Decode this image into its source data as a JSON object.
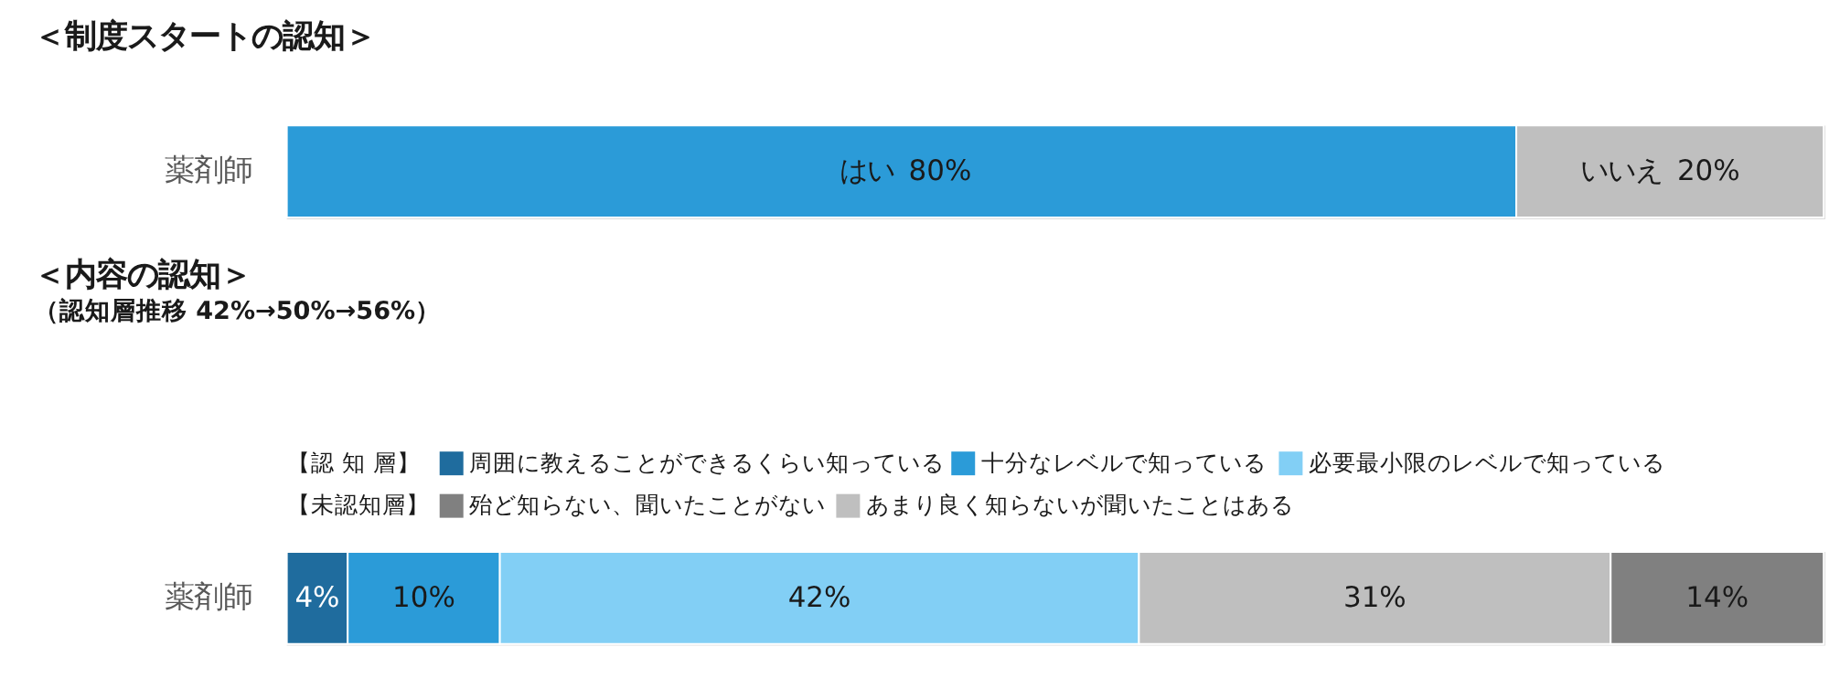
{
  "chart_data": [
    {
      "type": "bar",
      "orientation": "horizontal",
      "stacked": true,
      "title": "＜制度スタートの認知＞",
      "categories": [
        "薬剤師"
      ],
      "xlim": [
        0,
        100
      ],
      "tick_labels": "y",
      "series": [
        {
          "name": "はい",
          "color": "#2b9bd8",
          "values": [
            80
          ],
          "value_labels": [
            "80%"
          ]
        },
        {
          "name": "いいえ",
          "color": "#bfbfbf",
          "values": [
            20
          ],
          "value_labels": [
            "20%"
          ]
        }
      ]
    },
    {
      "type": "bar",
      "orientation": "horizontal",
      "stacked": true,
      "title": "＜内容の認知＞",
      "subtitle": "（認知層推移 42%→50%→56%）",
      "categories": [
        "薬剤師"
      ],
      "xlim": [
        0,
        101
      ],
      "tick_labels": "y",
      "legend": "top left",
      "annotations": [
        "【認 知 層】",
        "【未認知層】"
      ],
      "series": [
        {
          "name": "周囲に教えることができるくらい知っている",
          "color": "#1f6c9e",
          "values": [
            4
          ],
          "value_labels": [
            "4%"
          ]
        },
        {
          "name": "十分なレベルで知っている",
          "color": "#2b9bd8",
          "values": [
            10
          ],
          "value_labels": [
            "10%"
          ]
        },
        {
          "name": "必要最小限のレベルで知っている",
          "color": "#82cff5",
          "values": [
            42
          ],
          "value_labels": [
            "42%"
          ]
        },
        {
          "name": "あまり良く知らないが聞いたことはある",
          "color": "#bfbfbf",
          "values": [
            31
          ],
          "value_labels": [
            "31%"
          ]
        },
        {
          "name": "殆ど知らない、聞いたことがない",
          "color": "#808080",
          "values": [
            14
          ],
          "value_labels": [
            "14%"
          ]
        }
      ]
    }
  ]
}
